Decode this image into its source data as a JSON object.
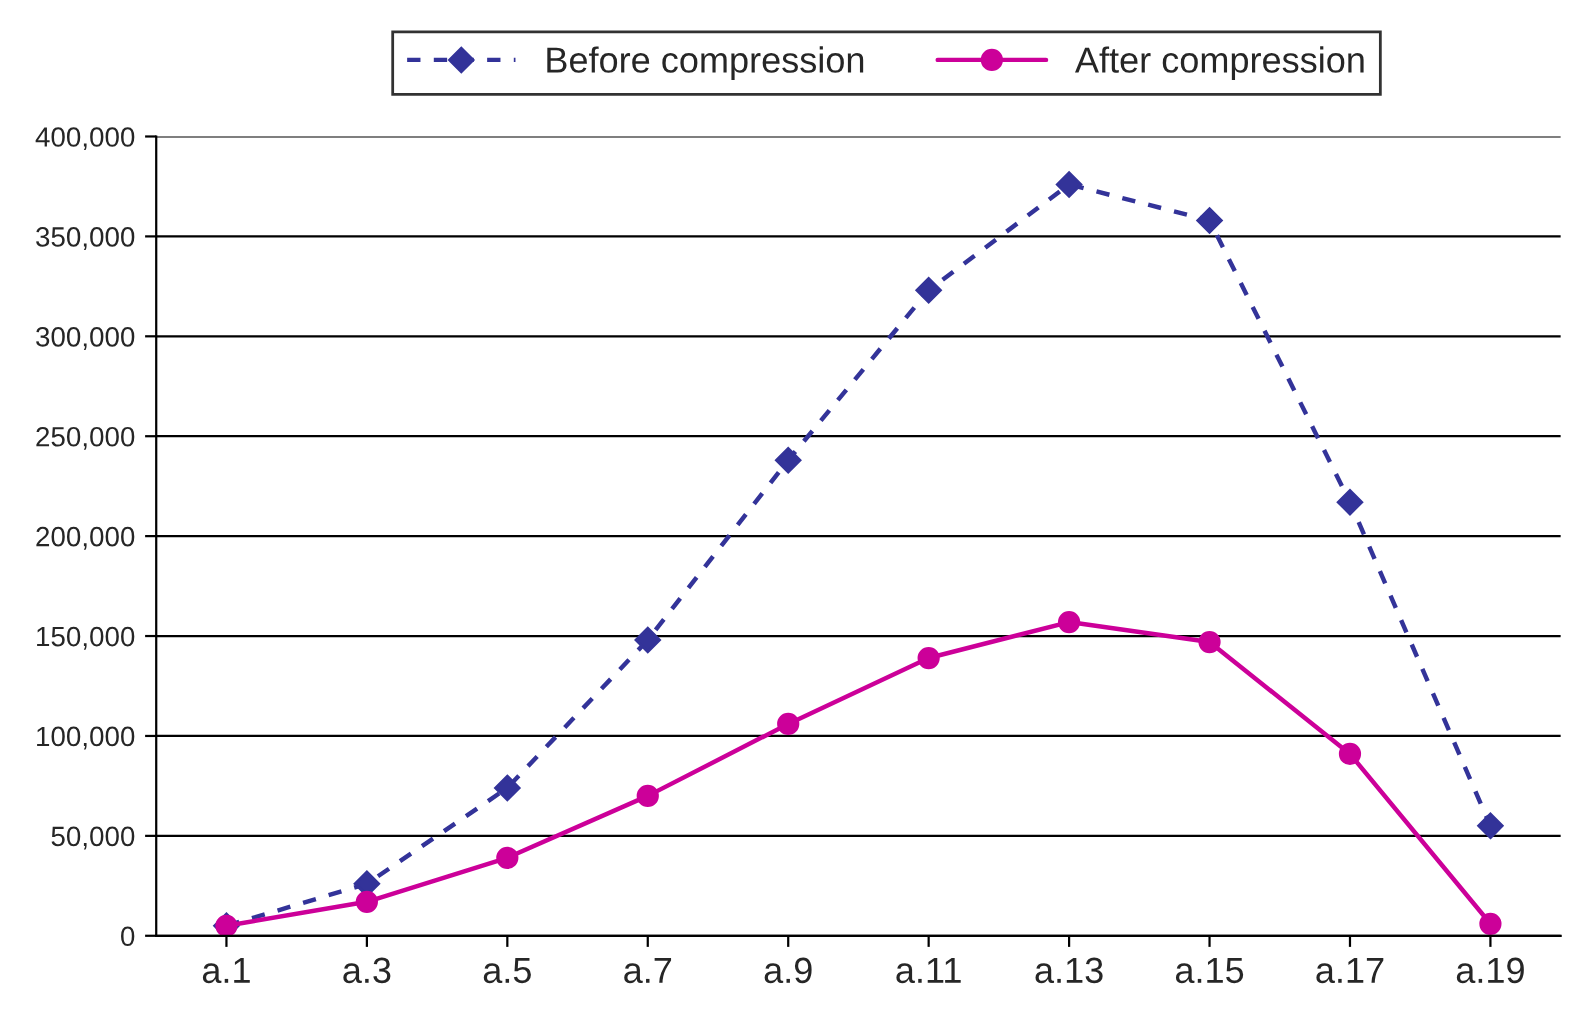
{
  "chart_data": {
    "type": "line",
    "categories": [
      "a.1",
      "a.3",
      "a.5",
      "a.7",
      "a.9",
      "a.11",
      "a.13",
      "a.15",
      "a.17",
      "a.19"
    ],
    "series": [
      {
        "name": "Before compression",
        "color": "#333399",
        "marker": "diamond",
        "line_style": "dashed",
        "values": [
          5000,
          26000,
          74000,
          148000,
          238000,
          323000,
          376000,
          358000,
          217000,
          55000
        ]
      },
      {
        "name": "After compression",
        "color": "#cc0099",
        "marker": "circle",
        "line_style": "solid",
        "values": [
          5000,
          17000,
          39000,
          70000,
          106000,
          139000,
          157000,
          147000,
          91000,
          6000
        ]
      }
    ],
    "ylim": [
      0,
      400000
    ],
    "yticks": [
      0,
      {
        "value": 50000,
        "label": "50,000"
      },
      {
        "value": 100000,
        "label": "100,000"
      },
      {
        "value": 150000,
        "label": "150,000"
      },
      {
        "value": 200000,
        "label": "200,000"
      },
      {
        "value": 250000,
        "label": "250,000"
      },
      {
        "value": 300000,
        "label": "300,000"
      },
      {
        "value": 350000,
        "label": "350,000"
      },
      {
        "value": 400000,
        "label": "400,000"
      }
    ],
    "grid": "y",
    "legend": "top"
  }
}
